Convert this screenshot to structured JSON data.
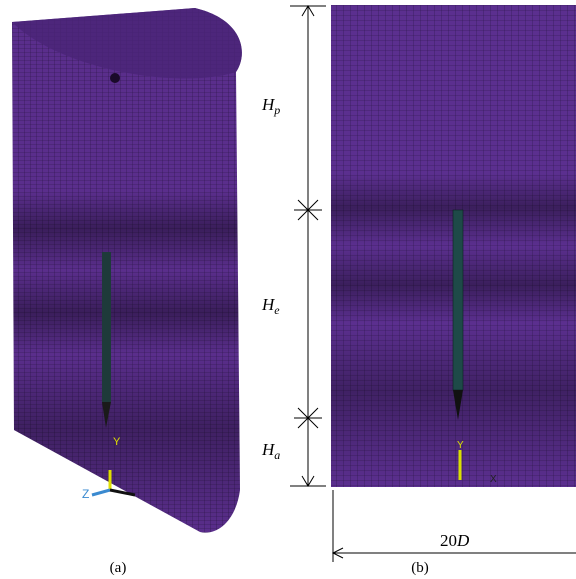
{
  "dimensions": {
    "upper": {
      "main": "H",
      "sub": "p"
    },
    "middle": {
      "main": "H",
      "sub": "e"
    },
    "lower": {
      "main": "H",
      "sub": "a"
    },
    "width": {
      "number": "20",
      "symbol": "D"
    }
  },
  "axes": {
    "y": "Y",
    "z": "Z",
    "x": "X"
  },
  "captions": {
    "left": "(a)",
    "right": "(b)"
  }
}
